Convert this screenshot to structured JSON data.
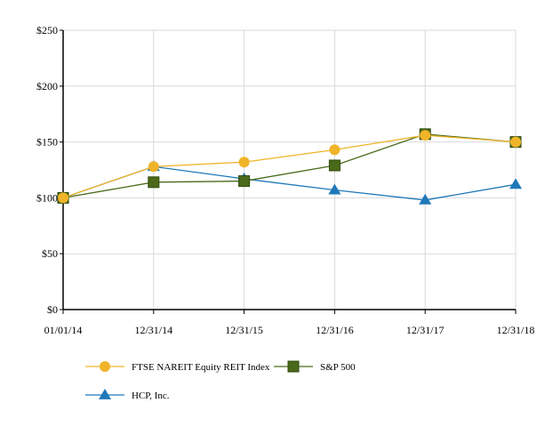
{
  "chart_data": {
    "type": "line",
    "title": "",
    "xlabel": "",
    "ylabel": "",
    "categories": [
      "01/01/14",
      "12/31/14",
      "12/31/15",
      "12/31/16",
      "12/31/17",
      "12/31/18"
    ],
    "ylim": [
      0,
      250
    ],
    "yticks": [
      "$0",
      "$50",
      "$100",
      "$150",
      "$200",
      "$250"
    ],
    "ytick_values": [
      0,
      50,
      100,
      150,
      200,
      250
    ],
    "grid": "vertical and horizontal",
    "legend_position": "bottom-left",
    "series": [
      {
        "name": "FTSE NAREIT Equity REIT Index",
        "color": "#f0b429",
        "marker": "circle",
        "values": [
          100,
          128,
          132,
          143,
          156,
          150
        ]
      },
      {
        "name": "S&P 500",
        "color": "#4a6a1a",
        "marker": "square",
        "values": [
          100,
          114,
          115,
          129,
          157,
          150
        ]
      },
      {
        "name": "HCP, Inc.",
        "color": "#1e78b8",
        "marker": "triangle",
        "values": [
          100,
          128,
          117,
          107,
          98,
          112
        ]
      }
    ]
  }
}
